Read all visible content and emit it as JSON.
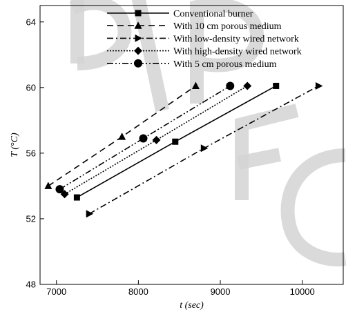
{
  "chart_data": {
    "type": "line",
    "title": "",
    "xlabel": "t (sec)",
    "ylabel": "T (°C)",
    "xlim": [
      6800,
      10500
    ],
    "ylim": [
      48,
      65
    ],
    "x_ticks": [
      7000,
      8000,
      9000,
      10000
    ],
    "y_ticks": [
      48,
      52,
      56,
      60,
      64
    ],
    "x_tick_labels": [
      "7000",
      "8000",
      "9000",
      "10000"
    ],
    "y_tick_labels": [
      "48",
      "52",
      "56",
      "60",
      "64"
    ],
    "grid": false,
    "legend_position": "top",
    "series": [
      {
        "name": "Conventional burner",
        "marker": "square",
        "dash": "solid",
        "x": [
          7250,
          8450,
          9680
        ],
        "y": [
          53.3,
          56.7,
          60.1
        ]
      },
      {
        "name": "With 10 cm porous medium",
        "marker": "triangle-up",
        "dash": "dash",
        "x": [
          6900,
          7800,
          8700
        ],
        "y": [
          54.0,
          57.0,
          60.1
        ]
      },
      {
        "name": "With low-density wired network",
        "marker": "triangle-right",
        "dash": "dashdot",
        "x": [
          7400,
          8800,
          10200
        ],
        "y": [
          52.3,
          56.3,
          60.1
        ]
      },
      {
        "name": "With high-density wired network",
        "marker": "diamond",
        "dash": "dotted",
        "x": [
          7100,
          8220,
          9330
        ],
        "y": [
          53.5,
          56.8,
          60.1
        ]
      },
      {
        "name": "With 5 cm porous medium",
        "marker": "circle",
        "dash": "dashdotdot",
        "x": [
          7040,
          8060,
          9120
        ],
        "y": [
          53.8,
          56.9,
          60.1
        ]
      }
    ]
  }
}
